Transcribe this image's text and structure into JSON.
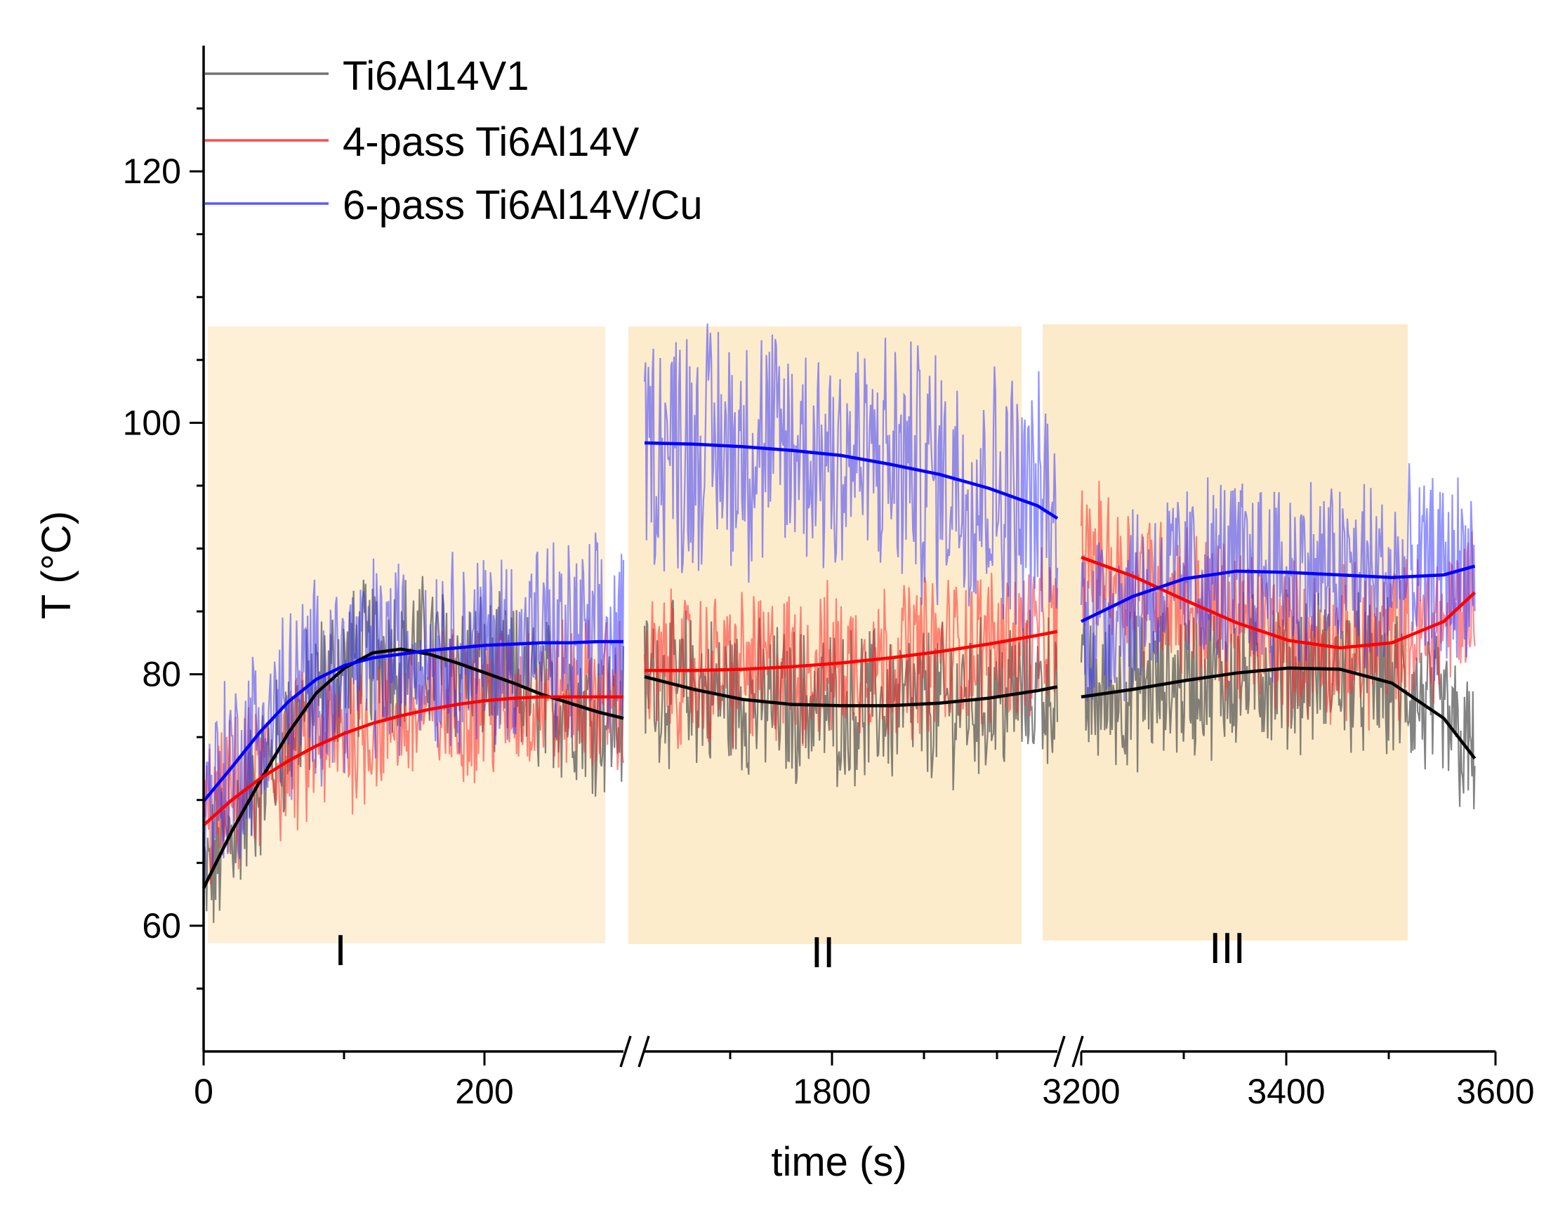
{
  "chart_data": {
    "type": "line",
    "xlabel": "time (s)",
    "ylabel": "T (°C)",
    "ylim": [
      50,
      130
    ],
    "y_ticks": [
      "60",
      "80",
      "100",
      "120"
    ],
    "x_broken_axis": true,
    "segments": [
      {
        "label": "I",
        "xlim": [
          0,
          298
        ],
        "x_ticks": [
          "0",
          "200"
        ]
      },
      {
        "label": "II",
        "xlim": [
          1600,
          2020
        ],
        "x_ticks": [
          "1800"
        ]
      },
      {
        "label": "III",
        "xlim": [
          3200,
          3600
        ],
        "x_ticks": [
          "3200",
          "3400",
          "3600"
        ]
      }
    ],
    "legend": {
      "position": "top-left",
      "entries": [
        "Ti6Al14V1",
        "4-pass Ti6Al14V",
        "6-pass Ti6Al14V/Cu"
      ]
    },
    "series": [
      {
        "name": "Ti6Al14V1",
        "color": "#5a5a5a",
        "fit_color": "#000000",
        "fit": {
          "x": [
            0,
            20,
            40,
            60,
            80,
            100,
            120,
            140,
            160,
            180,
            200,
            220,
            240,
            260,
            280,
            298,
            1600,
            1650,
            1700,
            1750,
            1800,
            1850,
            1900,
            1950,
            2000,
            2020,
            3200,
            3250,
            3300,
            3350,
            3400,
            3450,
            3500,
            3550,
            3580
          ],
          "y": [
            63,
            67.5,
            71.5,
            75.3,
            78.5,
            80.5,
            81.7,
            82,
            81.6,
            80.9,
            80.1,
            79.3,
            78.4,
            77.7,
            77,
            76.5,
            79.8,
            78.8,
            78,
            77.6,
            77.5,
            77.5,
            77.7,
            78.1,
            78.7,
            79,
            78.2,
            78.8,
            79.5,
            80.1,
            80.5,
            80.4,
            79.3,
            76.5,
            73.3
          ]
        },
        "noise": 5.5
      },
      {
        "name": "4-pass Ti6Al14V",
        "color": "#ff2a2a",
        "fit_color": "#ff0000",
        "fit": {
          "x": [
            0,
            20,
            40,
            60,
            80,
            100,
            120,
            140,
            160,
            180,
            200,
            220,
            240,
            260,
            280,
            298,
            1600,
            1650,
            1700,
            1750,
            1800,
            1850,
            1900,
            1950,
            2000,
            2020,
            3200,
            3250,
            3300,
            3350,
            3400,
            3450,
            3500,
            3550,
            3580
          ],
          "y": [
            68,
            70,
            71.7,
            73.1,
            74.3,
            75.3,
            76.1,
            76.7,
            77.2,
            77.6,
            77.9,
            78.1,
            78.2,
            78.2,
            78.2,
            78.2,
            80.3,
            80.3,
            80.4,
            80.6,
            80.9,
            81.3,
            81.8,
            82.4,
            83.1,
            83.4,
            89.3,
            87.8,
            85.9,
            84.1,
            82.7,
            82.1,
            82.5,
            84.2,
            86.5
          ]
        },
        "noise": 5.5
      },
      {
        "name": "6-pass Ti6Al14V/Cu",
        "color": "#3c3cff",
        "fit_color": "#0000ff",
        "fit": {
          "x": [
            0,
            20,
            40,
            60,
            80,
            100,
            120,
            140,
            160,
            180,
            200,
            220,
            240,
            260,
            280,
            298,
            1600,
            1650,
            1700,
            1750,
            1800,
            1850,
            1900,
            1950,
            2000,
            2020,
            3200,
            3250,
            3300,
            3350,
            3400,
            3450,
            3500,
            3550,
            3580
          ],
          "y": [
            69.9,
            72.6,
            75.4,
            77.8,
            79.6,
            80.7,
            81.3,
            81.6,
            81.9,
            82.1,
            82.3,
            82.4,
            82.5,
            82.5,
            82.6,
            82.6,
            98.4,
            98.3,
            98.1,
            97.8,
            97.4,
            96.7,
            95.9,
            94.8,
            93.4,
            92.4,
            84.2,
            86.2,
            87.6,
            88.2,
            88.1,
            87.9,
            87.7,
            87.9,
            88.6
          ]
        },
        "noise": 7
      }
    ]
  }
}
